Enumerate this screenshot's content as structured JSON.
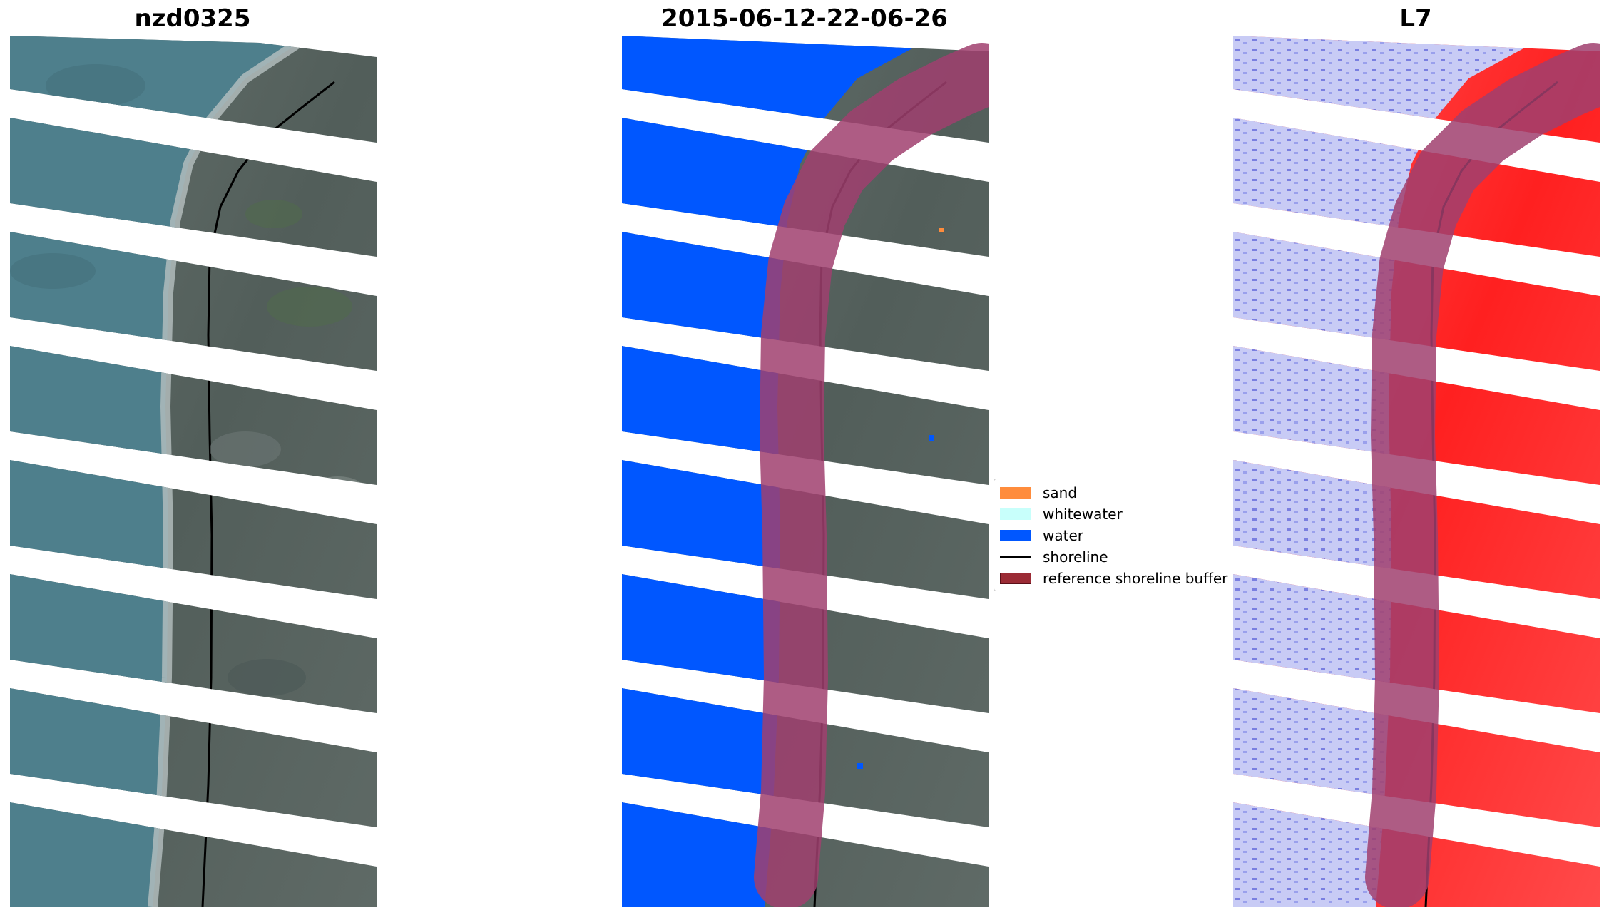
{
  "panels": [
    {
      "title": "nzd0325",
      "image": "rgb-satellite-image"
    },
    {
      "title": "2015-06-12-22-06-26",
      "image": "classified-image"
    },
    {
      "title": "L7",
      "image": "index-image"
    }
  ],
  "legend": {
    "items": [
      {
        "label": "sand",
        "color": "#ff8c3c",
        "kind": "patch"
      },
      {
        "label": "whitewater",
        "color": "#c8fffb",
        "kind": "patch"
      },
      {
        "label": "water",
        "color": "#0057ff",
        "kind": "patch"
      },
      {
        "label": "shoreline",
        "color": "#000000",
        "kind": "line"
      },
      {
        "label": "reference shoreline buffer",
        "color": "#9b2b35",
        "kind": "patch"
      }
    ]
  },
  "colors": {
    "water_rgb": "#4e7f8c",
    "land_rgb": "#5a6562",
    "water_class": "#0057ff",
    "buffer": "#a0406e",
    "index_water": "#c8cbf5",
    "index_land": "#ff3b3b"
  }
}
